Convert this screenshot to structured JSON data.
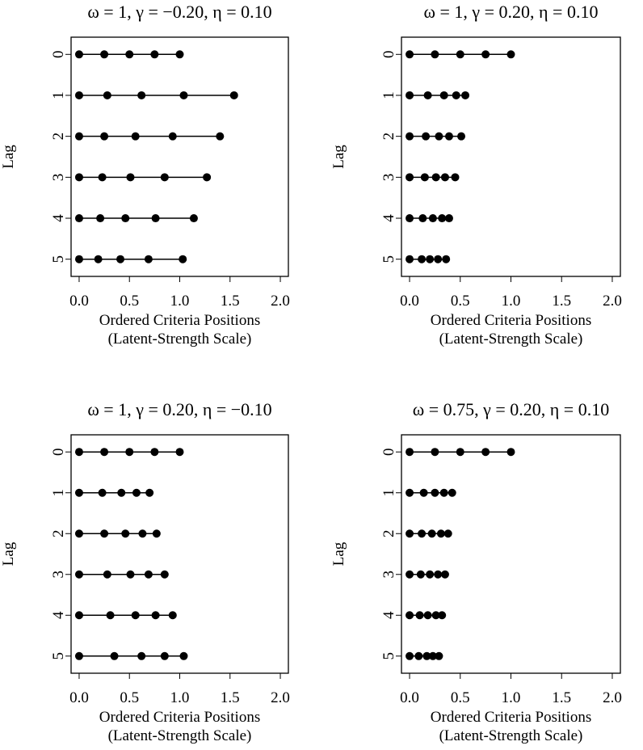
{
  "chart_data": [
    {
      "type": "dot-row",
      "title": "ω = 1, γ = −0.20, η = 0.10",
      "y_label": "Lag",
      "x_label": [
        "Ordered Criteria Positions",
        "(Latent-Strength Scale)"
      ],
      "categories": [
        "0",
        "1",
        "2",
        "3",
        "4",
        "5"
      ],
      "values": [
        [
          0,
          0.25,
          0.5,
          0.75,
          1.0
        ],
        [
          0,
          0.28,
          0.62,
          1.04,
          1.54
        ],
        [
          0,
          0.25,
          0.56,
          0.93,
          1.4
        ],
        [
          0,
          0.23,
          0.51,
          0.85,
          1.27
        ],
        [
          0,
          0.21,
          0.46,
          0.76,
          1.14
        ],
        [
          0,
          0.19,
          0.41,
          0.69,
          1.03
        ]
      ],
      "color": "#000000",
      "xlim": [
        -0.08,
        2.08
      ],
      "xticks": [
        {
          "value": 0,
          "label": "0.0"
        },
        {
          "value": 0.5,
          "label": "0.5"
        },
        {
          "value": 1,
          "label": "1.0"
        },
        {
          "value": 1.5,
          "label": "1.5"
        },
        {
          "value": 2,
          "label": "2.0"
        }
      ]
    },
    {
      "type": "dot-row",
      "title": "ω = 1, γ = 0.20, η = 0.10",
      "y_label": "Lag",
      "x_label": [
        "Ordered Criteria Positions",
        "(Latent-Strength Scale)"
      ],
      "categories": [
        "0",
        "1",
        "2",
        "3",
        "4",
        "5"
      ],
      "values": [
        [
          0,
          0.25,
          0.5,
          0.75,
          1.0
        ],
        [
          0,
          0.18,
          0.34,
          0.46,
          0.55
        ],
        [
          0,
          0.16,
          0.29,
          0.39,
          0.51
        ],
        [
          0,
          0.15,
          0.26,
          0.35,
          0.45
        ],
        [
          0,
          0.13,
          0.23,
          0.32,
          0.39
        ],
        [
          0,
          0.12,
          0.2,
          0.28,
          0.36
        ]
      ],
      "color": "#000000",
      "xlim": [
        -0.08,
        2.08
      ],
      "xticks": [
        {
          "value": 0,
          "label": "0.0"
        },
        {
          "value": 0.5,
          "label": "0.5"
        },
        {
          "value": 1,
          "label": "1.0"
        },
        {
          "value": 1.5,
          "label": "1.5"
        },
        {
          "value": 2,
          "label": "2.0"
        }
      ]
    },
    {
      "type": "dot-row",
      "title": "ω = 1, γ = 0.20, η = −0.10",
      "y_label": "Lag",
      "x_label": [
        "Ordered Criteria Positions",
        "(Latent-Strength Scale)"
      ],
      "categories": [
        "0",
        "1",
        "2",
        "3",
        "4",
        "5"
      ],
      "values": [
        [
          0,
          0.25,
          0.5,
          0.75,
          1.0
        ],
        [
          0,
          0.23,
          0.42,
          0.57,
          0.7
        ],
        [
          0,
          0.25,
          0.46,
          0.63,
          0.77
        ],
        [
          0,
          0.28,
          0.51,
          0.69,
          0.85
        ],
        [
          0,
          0.31,
          0.56,
          0.76,
          0.93
        ],
        [
          0,
          0.35,
          0.62,
          0.85,
          1.04
        ]
      ],
      "color": "#000000",
      "xlim": [
        -0.08,
        2.08
      ],
      "xticks": [
        {
          "value": 0,
          "label": "0.0"
        },
        {
          "value": 0.5,
          "label": "0.5"
        },
        {
          "value": 1,
          "label": "1.0"
        },
        {
          "value": 1.5,
          "label": "1.5"
        },
        {
          "value": 2,
          "label": "2.0"
        }
      ]
    },
    {
      "type": "dot-row",
      "title": "ω = 0.75, γ = 0.20, η = 0.10",
      "y_label": "Lag",
      "x_label": [
        "Ordered Criteria Positions",
        "(Latent-Strength Scale)"
      ],
      "categories": [
        "0",
        "1",
        "2",
        "3",
        "4",
        "5"
      ],
      "values": [
        [
          0,
          0.25,
          0.5,
          0.75,
          1.0
        ],
        [
          0,
          0.14,
          0.25,
          0.34,
          0.42
        ],
        [
          0,
          0.12,
          0.22,
          0.31,
          0.38
        ],
        [
          0,
          0.11,
          0.2,
          0.28,
          0.35
        ],
        [
          0,
          0.1,
          0.18,
          0.26,
          0.32
        ],
        [
          0,
          0.09,
          0.17,
          0.23,
          0.29
        ]
      ],
      "color": "#000000",
      "xlim": [
        -0.08,
        2.08
      ],
      "xticks": [
        {
          "value": 0,
          "label": "0.0"
        },
        {
          "value": 0.5,
          "label": "0.5"
        },
        {
          "value": 1,
          "label": "1.0"
        },
        {
          "value": 1.5,
          "label": "1.5"
        },
        {
          "value": 2,
          "label": "2.0"
        }
      ]
    }
  ]
}
